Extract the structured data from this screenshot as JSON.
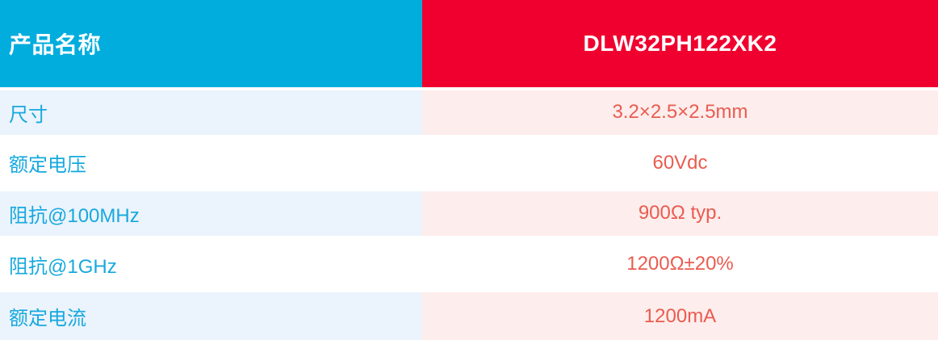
{
  "colors": {
    "header_cyan": "#00ADDD",
    "header_red": "#F0002F",
    "label_text": "#17A9DD",
    "value_text": "#E95C50",
    "row_blue_bg": "#EBF3FC",
    "row_pink_bg": "#FDEDEC",
    "separator": "#FFFFFF"
  },
  "table": {
    "header": {
      "label": "产品名称",
      "value": "DLW32PH122XK2"
    },
    "rows": [
      {
        "label": "尺寸",
        "value": "3.2×2.5×2.5mm"
      },
      {
        "label": "额定电压",
        "value": "60Vdc"
      },
      {
        "label": "阻抗@100MHz",
        "value": "900Ω typ."
      },
      {
        "label": "阻抗@1GHz",
        "value": "1200Ω±20%"
      },
      {
        "label": "额定电流",
        "value": "1200mA"
      }
    ]
  },
  "chart_data": {
    "type": "table",
    "title": "产品名称 / DLW32PH122XK2",
    "columns": [
      "产品名称",
      "DLW32PH122XK2"
    ],
    "rows": [
      [
        "尺寸",
        "3.2×2.5×2.5mm"
      ],
      [
        "额定电压",
        "60Vdc"
      ],
      [
        "阻抗@100MHz",
        "900Ω typ."
      ],
      [
        "阻抗@1GHz",
        "1200Ω±20%"
      ],
      [
        "额定电流",
        "1200mA"
      ]
    ]
  }
}
